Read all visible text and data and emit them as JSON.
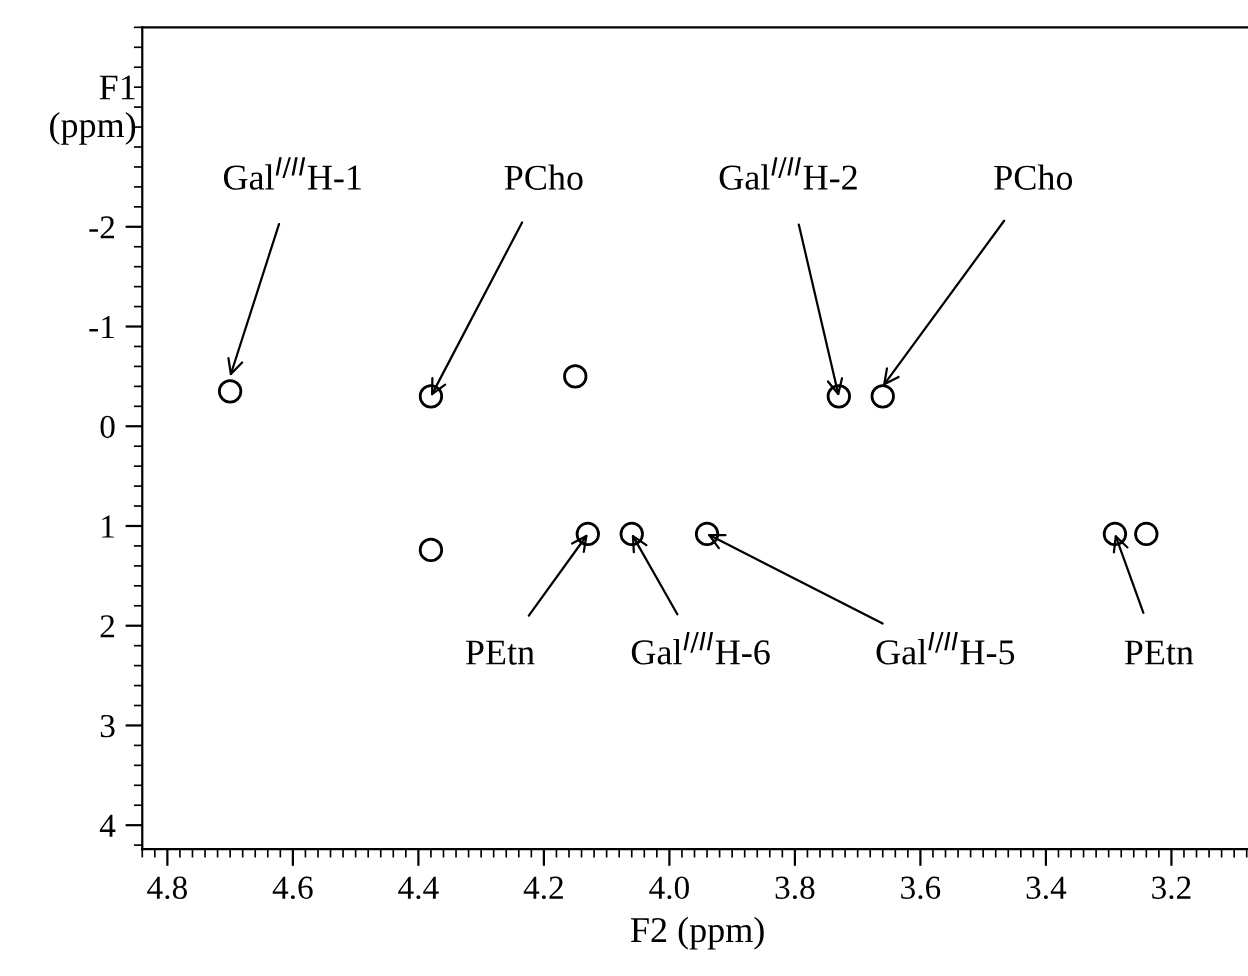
{
  "chart_data": {
    "type": "scatter",
    "xlabel": "F2 (ppm)",
    "ylabel": "F1\n(ppm)",
    "xlim": [
      4.84,
      3.07
    ],
    "xticks": [
      {
        "value": 4.8,
        "label": "4.8"
      },
      {
        "value": 4.6,
        "label": "4.6"
      },
      {
        "value": 4.4,
        "label": "4.4"
      },
      {
        "value": 4.2,
        "label": "4.2"
      },
      {
        "value": 4.0,
        "label": "4.0"
      },
      {
        "value": 3.8,
        "label": "3.8"
      },
      {
        "value": 3.6,
        "label": "3.6"
      },
      {
        "value": 3.4,
        "label": "3.4"
      },
      {
        "value": 3.2,
        "label": "3.2"
      }
    ],
    "ylim": [
      4.24,
      -4.0
    ],
    "yticks": [
      -2,
      -1,
      0,
      1,
      2,
      3,
      4
    ],
    "series": [
      {
        "color": "#000000",
        "x": [
          4.7,
          4.38,
          4.38,
          4.15,
          4.13,
          4.06,
          3.94,
          3.73,
          3.66,
          3.29,
          3.24
        ],
        "values": [
          -0.35,
          -0.3,
          1.24,
          -0.5,
          1.08,
          1.08,
          1.08,
          -0.3,
          -0.3,
          1.08,
          1.08
        ]
      }
    ],
    "marker": "circle",
    "grid": false,
    "legend": false,
    "annotations": [
      {
        "text": "Gal$^{I/II}$H-1",
        "x": 4.7,
        "y": -0.5
      },
      {
        "text": "PCho",
        "x": 4.38,
        "y": -0.3
      },
      {
        "text": "PEtn",
        "x": 4.13,
        "y": 1.08
      },
      {
        "text": "Gal$^{I/II}$H-6",
        "x": 4.06,
        "y": 1.08
      },
      {
        "text": "Gal$^{I/II}$H-5",
        "x": 3.94,
        "y": 1.08
      },
      {
        "text": "Gal$^{I/II}$H-2",
        "x": 3.73,
        "y": -0.3
      },
      {
        "text": "PCho",
        "x": 3.66,
        "y": -0.4
      },
      {
        "text": "PEtn",
        "x": 3.29,
        "y": 1.08
      }
    ]
  }
}
